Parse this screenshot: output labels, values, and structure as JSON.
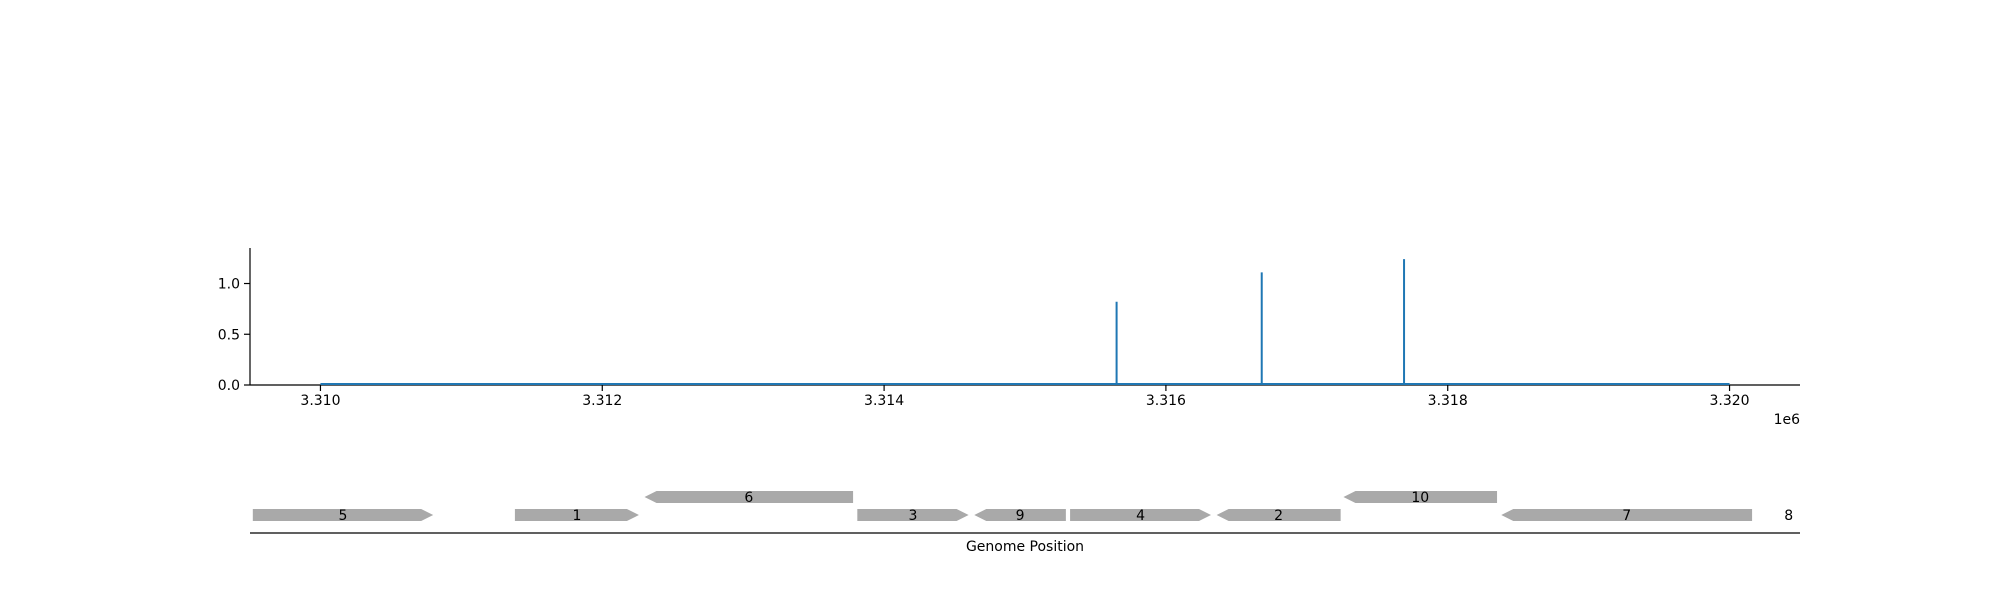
{
  "chart_data": [
    {
      "type": "line",
      "x_offset_label": "1e6",
      "xlim": [
        3309500,
        3320500
      ],
      "ylim": [
        0,
        1.35
      ],
      "x_ticks": [
        {
          "value": 3310000,
          "label": "3.310"
        },
        {
          "value": 3312000,
          "label": "3.312"
        },
        {
          "value": 3314000,
          "label": "3.314"
        },
        {
          "value": 3316000,
          "label": "3.316"
        },
        {
          "value": 3318000,
          "label": "3.318"
        },
        {
          "value": 3320000,
          "label": "3.320"
        }
      ],
      "y_ticks": [
        {
          "value": 0.0,
          "label": "0.0"
        },
        {
          "value": 0.5,
          "label": "0.5"
        },
        {
          "value": 1.0,
          "label": "1.0"
        }
      ],
      "baseline": {
        "x_start": 3310000,
        "x_end": 3320000,
        "y": 0.0
      },
      "spikes": [
        {
          "x": 3315650,
          "y": 0.82
        },
        {
          "x": 3316680,
          "y": 1.11
        },
        {
          "x": 3317690,
          "y": 1.24
        }
      ],
      "color": "#1f77b4"
    },
    {
      "type": "gene-map",
      "xlabel": "Genome Position",
      "xlim": [
        3309500,
        3320500
      ],
      "genes": [
        {
          "label": "5",
          "start": 3309520,
          "end": 3310800,
          "strand": "+",
          "row": 0
        },
        {
          "label": "1",
          "start": 3311380,
          "end": 3312260,
          "strand": "+",
          "row": 0
        },
        {
          "label": "6",
          "start": 3312300,
          "end": 3313780,
          "strand": "-",
          "row": 1
        },
        {
          "label": "3",
          "start": 3313810,
          "end": 3314600,
          "strand": "+",
          "row": 0
        },
        {
          "label": "9",
          "start": 3314640,
          "end": 3315290,
          "strand": "-",
          "row": 0
        },
        {
          "label": "4",
          "start": 3315320,
          "end": 3316320,
          "strand": "+",
          "row": 0
        },
        {
          "label": "2",
          "start": 3316360,
          "end": 3317240,
          "strand": "-",
          "row": 0
        },
        {
          "label": "10",
          "start": 3317260,
          "end": 3318350,
          "strand": "-",
          "row": 1
        },
        {
          "label": "7",
          "start": 3318380,
          "end": 3320160,
          "strand": "-",
          "row": 0
        },
        {
          "label": "8",
          "start": 3320420,
          "end": 3320420,
          "strand": "+",
          "row": 0
        }
      ],
      "gene_color": "#a9a9a9"
    }
  ]
}
